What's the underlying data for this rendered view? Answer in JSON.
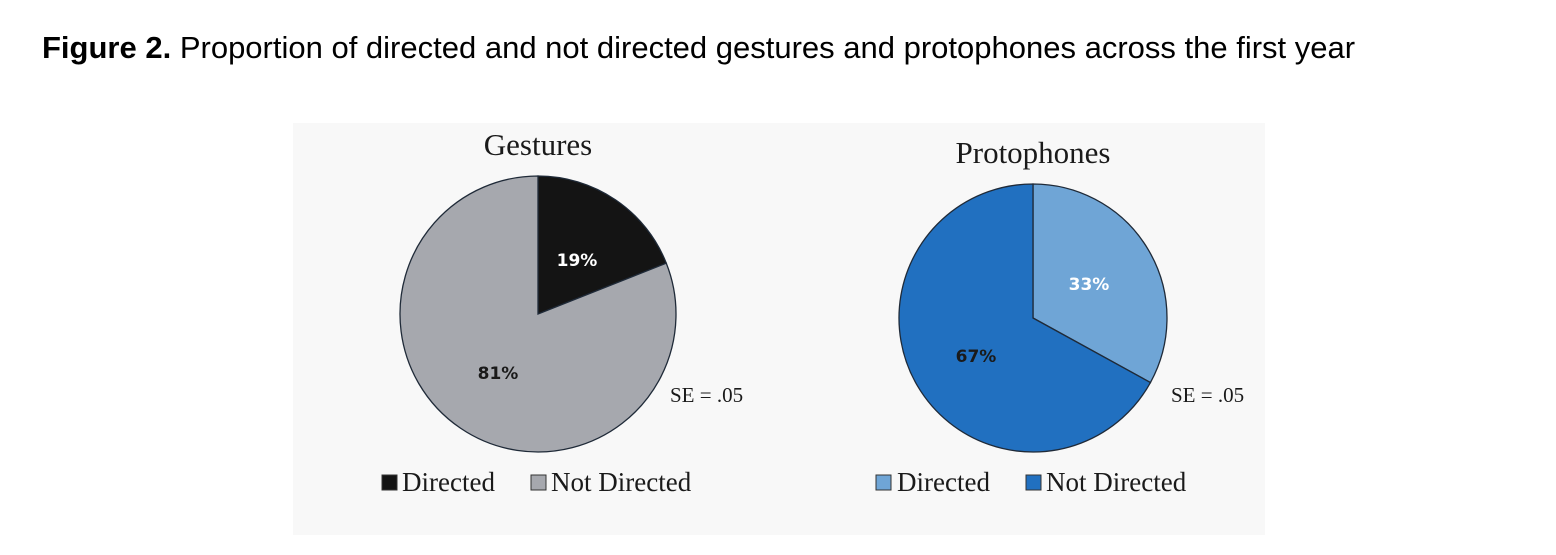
{
  "caption": {
    "label": "Figure 2.",
    "text": "Proportion of directed and not directed gestures and protophones across the first year"
  },
  "chart_data": [
    {
      "type": "pie",
      "title": "Gestures",
      "series": [
        {
          "name": "Directed",
          "value": 19,
          "label": "19%",
          "color": "#141414",
          "label_color": "#ffffff"
        },
        {
          "name": "Not Directed",
          "value": 81,
          "label": "81%",
          "color": "#a6a8ae",
          "label_color": "#1a1a1a"
        }
      ],
      "annotation": "SE = .05",
      "legend": [
        "Directed",
        "Not Directed"
      ],
      "legend_position": "bottom"
    },
    {
      "type": "pie",
      "title": "Protophones",
      "series": [
        {
          "name": "Directed",
          "value": 33,
          "label": "33%",
          "color": "#6fa5d6",
          "label_color": "#ffffff"
        },
        {
          "name": "Not Directed",
          "value": 67,
          "label": "67%",
          "color": "#2170c0",
          "label_color": "#1a1a1a"
        }
      ],
      "annotation": "SE = .05",
      "legend": [
        "Directed",
        "Not Directed"
      ],
      "legend_position": "bottom"
    }
  ]
}
